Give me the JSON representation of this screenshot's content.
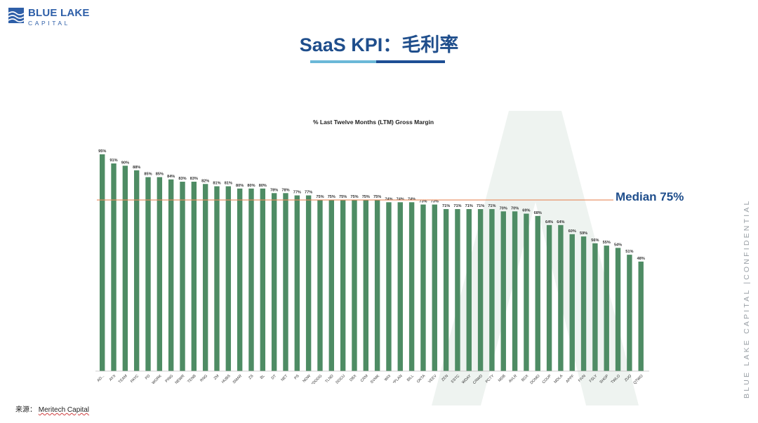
{
  "logo": {
    "name": "BLUE LAKE",
    "sub": "CAPITAL"
  },
  "title": "SaaS KPI：毛利率",
  "side_text": "BLUE LAKE CAPITAL  |CONFIDENTIAL",
  "source": {
    "label": "来源：",
    "value": "Meritech Capital"
  },
  "median_label": "Median 75%",
  "colors": {
    "bar": "#4e8c64",
    "median_line": "#e8895a",
    "title": "#1f4e8c"
  },
  "chart_data": {
    "type": "bar",
    "title": "% Last Twelve Months (LTM) Gross Margin",
    "categories": [
      "AD...",
      "AYX",
      "TEAM",
      "PAYC",
      "PD",
      "WORK",
      "PING",
      "NEWR",
      "TENB",
      "RNG",
      "ZM",
      "HUBS",
      "SMAR",
      "ZS",
      "BL",
      "DT",
      "NET",
      "PS",
      "NOW",
      "*DOOG",
      "TLND",
      "DOCU",
      "DBX",
      "CRM",
      "SVMK",
      "WIX",
      "*PLAN",
      "BILL",
      "OKTA",
      "VEEV",
      "ZEN",
      "ESTC",
      "WDAY",
      "CRWD",
      "PCTY",
      "MDB",
      "AVLR",
      "BOX",
      "DOMO",
      "COUP",
      "MDLA",
      "APPF",
      "FIVN",
      "FSLY",
      "SHOP",
      "TWLO",
      "ZUO",
      "QTWO"
    ],
    "values": [
      95,
      91,
      90,
      88,
      85,
      85,
      84,
      83,
      83,
      82,
      81,
      81,
      80,
      80,
      80,
      78,
      78,
      77,
      77,
      75,
      75,
      75,
      75,
      75,
      75,
      74,
      74,
      74,
      73,
      73,
      71,
      71,
      71,
      71,
      71,
      70,
      70,
      69,
      68,
      64,
      64,
      60,
      59,
      56,
      55,
      54,
      51,
      48
    ],
    "value_labels": [
      "95%",
      "91%",
      "90%",
      "88%",
      "85%",
      "85%",
      "84%",
      "83%",
      "83%",
      "82%",
      "81%",
      "81%",
      "80%",
      "80%",
      "80%",
      "78%",
      "78%",
      "77%",
      "77%",
      "75%",
      "75%",
      "75%",
      "75%",
      "75%",
      "75%",
      "74%",
      "74%",
      "74%",
      "73%",
      "73%",
      "71%",
      "71%",
      "71%",
      "71%",
      "71%",
      "70%",
      "70%",
      "69%",
      "68%",
      "64%",
      "64%",
      "60%",
      "59%",
      "56%",
      "55%",
      "54%",
      "51%",
      "48%"
    ],
    "median": 75,
    "ylim": [
      0,
      95
    ],
    "grid": false
  }
}
